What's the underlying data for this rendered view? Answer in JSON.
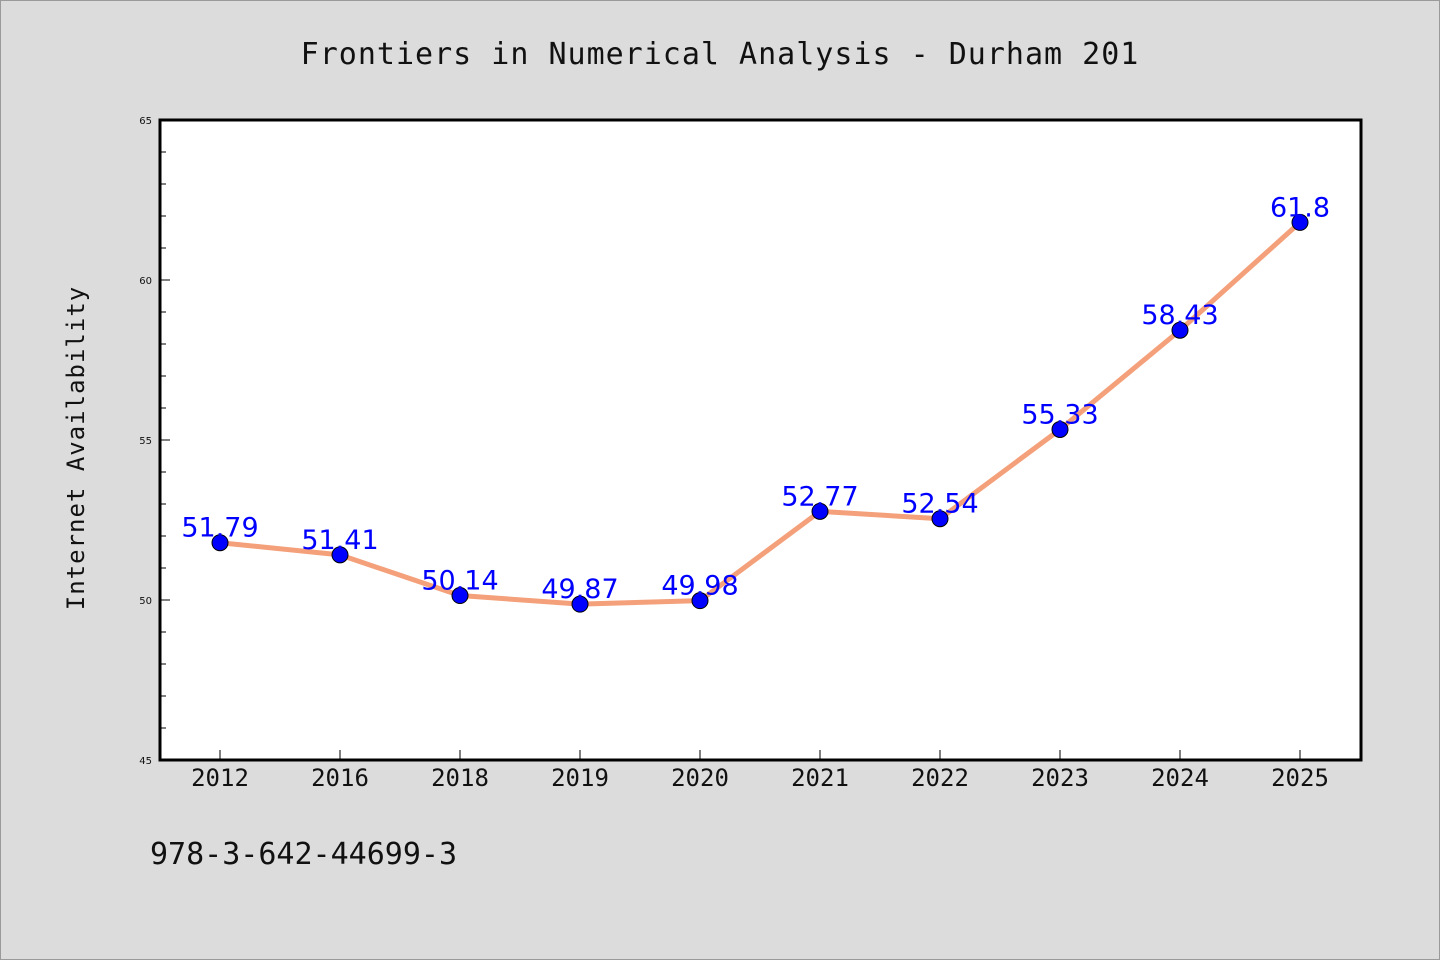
{
  "chart_data": {
    "type": "line",
    "title": "Frontiers in Numerical Analysis - Durham 201",
    "xlabel": "",
    "ylabel": "Internet Availability",
    "categories": [
      "2012",
      "2016",
      "2018",
      "2019",
      "2020",
      "2021",
      "2022",
      "2023",
      "2024",
      "2025"
    ],
    "series": [
      {
        "values": [
          51.79,
          51.41,
          50.14,
          49.87,
          49.98,
          52.77,
          52.54,
          55.33,
          58.43,
          61.8
        ],
        "labels": [
          "51.79",
          "51.41",
          "50.14",
          "49.87",
          "49.98",
          "52.77",
          "52.54",
          "55.33",
          "58.43",
          "61.8"
        ],
        "line_color": "#f4a07a",
        "marker_color": "#0000ff"
      }
    ],
    "ylim": [
      45,
      65
    ],
    "yticks": [
      "45",
      "50",
      "55",
      "60",
      "65"
    ],
    "grid": false,
    "legend": "none"
  },
  "footer": {
    "isbn": "978-3-642-44699-3"
  },
  "colors": {
    "background": "#dcdcdc",
    "plot_background": "#ffffff",
    "line": "#f4a07a",
    "marker": "#0000ff",
    "data_label": "#0000ff"
  }
}
